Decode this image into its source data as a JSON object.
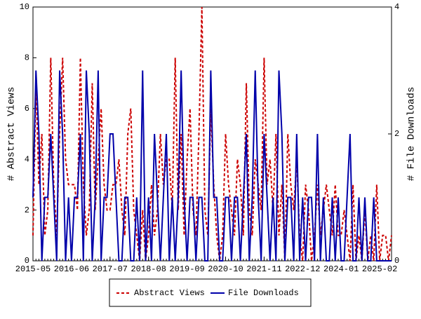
{
  "chart_data": {
    "type": "line",
    "x": [
      "2015-05",
      "2015-06",
      "2015-07",
      "2015-08",
      "2015-09",
      "2015-10",
      "2015-11",
      "2015-12",
      "2016-01",
      "2016-02",
      "2016-03",
      "2016-04",
      "2016-05",
      "2016-06",
      "2016-07",
      "2016-08",
      "2016-09",
      "2016-10",
      "2016-11",
      "2016-12",
      "2017-01",
      "2017-02",
      "2017-03",
      "2017-04",
      "2017-05",
      "2017-06",
      "2017-07",
      "2017-08",
      "2017-09",
      "2017-10",
      "2017-11",
      "2017-12",
      "2018-01",
      "2018-02",
      "2018-03",
      "2018-04",
      "2018-05",
      "2018-06",
      "2018-07",
      "2018-08",
      "2018-09",
      "2018-10",
      "2018-11",
      "2018-12",
      "2019-01",
      "2019-02",
      "2019-03",
      "2019-04",
      "2019-05",
      "2019-06",
      "2019-07",
      "2019-08",
      "2019-09",
      "2019-10",
      "2019-11",
      "2019-12",
      "2020-01",
      "2020-02",
      "2020-03",
      "2020-04",
      "2020-05",
      "2020-06",
      "2020-07",
      "2020-08",
      "2020-09",
      "2020-10",
      "2020-11",
      "2020-12",
      "2021-01",
      "2021-02",
      "2021-03",
      "2021-04",
      "2021-05",
      "2021-06",
      "2021-07",
      "2021-08",
      "2021-09",
      "2021-10",
      "2021-11",
      "2021-12",
      "2022-01",
      "2022-02",
      "2022-03",
      "2022-04",
      "2022-05",
      "2022-06",
      "2022-07",
      "2022-08",
      "2022-09",
      "2022-10",
      "2022-11",
      "2022-12",
      "2023-01",
      "2023-02",
      "2023-03",
      "2023-04",
      "2023-05",
      "2023-06",
      "2023-07",
      "2023-08",
      "2023-09",
      "2023-10",
      "2023-11",
      "2023-12",
      "2024-01",
      "2024-02",
      "2024-03",
      "2024-04",
      "2024-05",
      "2024-06",
      "2024-07",
      "2024-08",
      "2024-09",
      "2024-10",
      "2024-11",
      "2024-12",
      "2025-01",
      "2025-02",
      "2025-03",
      "2025-04",
      "2025-05",
      "2025-06"
    ],
    "xticks": [
      "2015-05",
      "2016-06",
      "2017-07",
      "2018-08",
      "2019-09",
      "2020-10",
      "2021-11",
      "2022-12",
      "2024-01",
      "2025-02"
    ],
    "ylabel": "# Abstract Views",
    "y2label": "# File Downloads",
    "ylim": [
      0,
      10
    ],
    "yticks": [
      0,
      2,
      4,
      6,
      8,
      10
    ],
    "y2lim": [
      0,
      4
    ],
    "y2ticks": [
      0,
      2,
      4
    ],
    "legend": "bottom",
    "series": [
      {
        "name": "Abstract Views",
        "color": "#cc0000",
        "linestyle": "dashed",
        "axis": "y",
        "values": [
          1,
          7,
          3,
          5,
          1,
          2,
          8,
          3,
          1,
          5,
          8,
          4,
          3,
          3,
          3,
          2,
          8,
          3,
          1,
          2,
          7,
          2,
          4,
          6,
          3,
          2,
          2,
          3,
          3,
          4,
          2,
          1,
          5,
          6,
          2,
          1,
          0,
          2,
          0,
          1,
          3,
          1,
          2,
          5,
          3,
          4,
          4,
          2,
          8,
          2,
          5,
          1,
          4,
          6,
          2,
          1,
          5,
          10,
          2,
          1,
          6,
          3,
          1,
          0,
          1,
          5,
          3,
          2,
          1,
          4,
          3,
          1,
          7,
          2,
          1,
          4,
          3,
          2,
          8,
          3,
          4,
          2,
          5,
          1,
          3,
          0,
          5,
          3,
          2,
          4,
          1,
          0,
          3,
          2,
          0,
          1,
          3,
          1,
          2,
          3,
          2,
          1,
          3,
          1,
          1,
          2,
          1,
          0,
          3,
          0,
          1,
          0,
          2,
          0,
          1,
          0,
          3,
          0,
          1,
          1,
          0,
          1
        ]
      },
      {
        "name": "File Downloads",
        "color": "#0000aa",
        "linestyle": "solid",
        "axis": "y2",
        "values": [
          1,
          3,
          2,
          0,
          1,
          1,
          2,
          1,
          0,
          3,
          2,
          0,
          1,
          0,
          1,
          1,
          2,
          0,
          3,
          2,
          0,
          1,
          3,
          0,
          1,
          1,
          2,
          2,
          1,
          0,
          0,
          1,
          1,
          0,
          0,
          1,
          0,
          3,
          0,
          1,
          0,
          2,
          1,
          0,
          1,
          2,
          0,
          1,
          0,
          1,
          3,
          1,
          0,
          1,
          1,
          0,
          1,
          1,
          0,
          0,
          3,
          1,
          1,
          0,
          0,
          1,
          1,
          0,
          1,
          1,
          0,
          1,
          2,
          0,
          1,
          3,
          1,
          0,
          2,
          1,
          0,
          1,
          0,
          3,
          2,
          0,
          1,
          1,
          0,
          2,
          0,
          1,
          0,
          1,
          1,
          0,
          2,
          0,
          1,
          0,
          0,
          1,
          0,
          1,
          0,
          0,
          1,
          2,
          0,
          0,
          1,
          0,
          1,
          0,
          0,
          1,
          0,
          0,
          0,
          0,
          0,
          0
        ]
      }
    ]
  }
}
